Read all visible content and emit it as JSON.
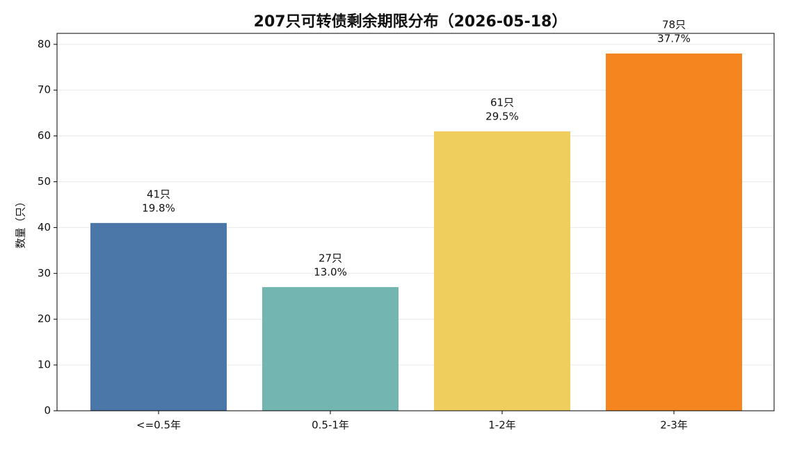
{
  "chart_data": {
    "type": "bar",
    "title": "207只可转债剩余期限分布（2026-05-18）",
    "y_label": "数量（只）",
    "categories": [
      "<=0.5年",
      "0.5-1年",
      "1-2年",
      "2-3年"
    ],
    "values": [
      41,
      27,
      61,
      78
    ],
    "value_labels": [
      "41只",
      "27只",
      "61只",
      "78只"
    ],
    "share_labels": [
      "19.8%",
      "13.0%",
      "29.5%",
      "37.7%"
    ],
    "colors": [
      "#4a76a8",
      "#73b6b1",
      "#f0ce5e",
      "#f5861f"
    ],
    "ylim": [
      0,
      82.4
    ],
    "yticks": [
      0,
      10,
      20,
      30,
      40,
      50,
      60,
      70,
      80
    ],
    "grid": true
  }
}
